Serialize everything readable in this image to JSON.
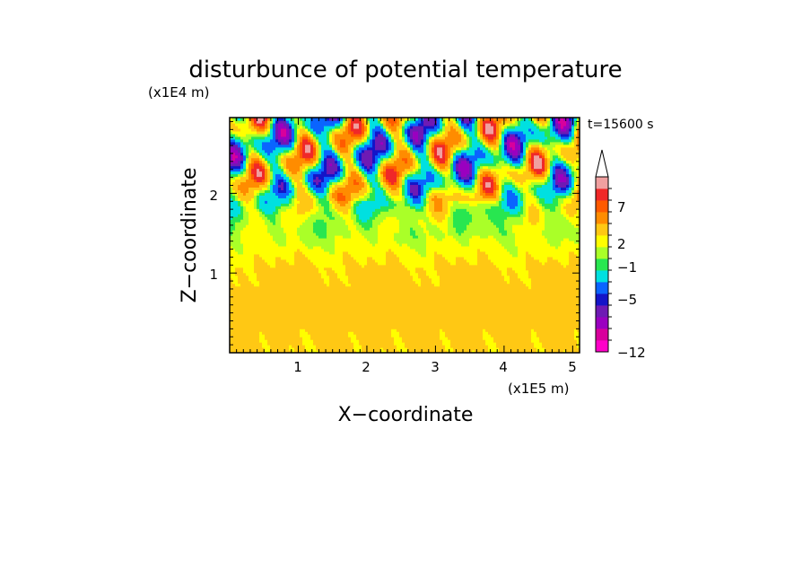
{
  "chart_data": {
    "type": "heatmap",
    "title": "disturbunce of potential temperature",
    "time_label": "t=15600 s",
    "xlabel": "X−coordinate",
    "ylabel": "Z−coordinate",
    "x_unit": "(x1E5 m)",
    "y_unit": "(x1E4 m)",
    "x_ticks": [
      "1",
      "2",
      "3",
      "4",
      "5"
    ],
    "y_ticks": [
      "1",
      "2"
    ],
    "xlim": [
      0,
      5.1
    ],
    "ylim": [
      0,
      2.95
    ],
    "colorbar": {
      "tick_labels": [
        "−12",
        "−5",
        "−1",
        "2",
        "7"
      ],
      "levels": [
        -12,
        -10,
        -8,
        -6,
        -5,
        -3,
        -1,
        0,
        1,
        2,
        4,
        6,
        7,
        9
      ],
      "colors": [
        "#ff00c8",
        "#d8009c",
        "#9a00c0",
        "#6e1ab4",
        "#1414c8",
        "#0a64ff",
        "#00e0e0",
        "#28e650",
        "#aaff28",
        "#ffff00",
        "#ffc814",
        "#ff8c00",
        "#ff5a00",
        "#f02828",
        "#f0a0a0"
      ]
    },
    "field_description": {
      "z_bands": [
        {
          "z_from": 0.0,
          "z_to": 0.3,
          "dominant": [
            "#ffff00",
            "#aaff28"
          ]
        },
        {
          "z_from": 0.3,
          "z_to": 0.8,
          "dominant": [
            "#ffc814",
            "#ffff00"
          ]
        },
        {
          "z_from": 0.8,
          "z_to": 1.3,
          "dominant": [
            "#ffff00",
            "#aaff28"
          ]
        },
        {
          "z_from": 1.3,
          "z_to": 1.8,
          "dominant": [
            "#28e650",
            "#aaff28",
            "#00e0e0"
          ]
        },
        {
          "z_from": 1.8,
          "z_to": 2.95,
          "dominant": [
            "#1414c8",
            "#9a00c0",
            "#ff5a00",
            "#f02828",
            "#ffff00"
          ]
        }
      ]
    }
  }
}
